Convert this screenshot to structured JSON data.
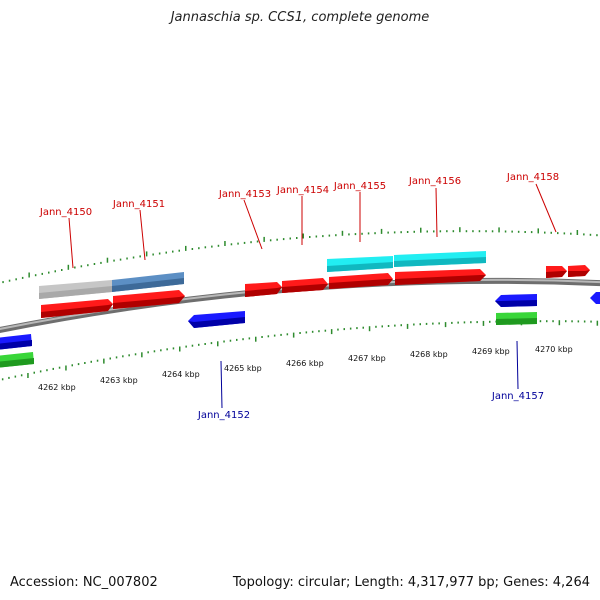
{
  "title": "Jannaschia sp. CCS1, complete genome",
  "footer": {
    "accession": "Accession: NC_007802",
    "summary": "Topology: circular; Length: 4,317,977 bp; Genes: 4,264"
  },
  "colors": {
    "backbone": "#8a8a8a",
    "tick": "#2e8b2e",
    "forward_gene": "#ee1111",
    "reverse_gene": "#1111ee",
    "rna_gene": "#33cc33",
    "cyan_feature": "#11e0e8",
    "steel_feature": "#4a7fb5",
    "grey_feature": "#c8c8c8",
    "label_forward": "#cc0000",
    "label_reverse": "#000099",
    "scale_label": "#111111"
  },
  "scale_labels": [
    "4262 kbp",
    "4263 kbp",
    "4264 kbp",
    "4265 kbp",
    "4266 kbp",
    "4267 kbp",
    "4268 kbp",
    "4269 kbp",
    "4270 kbp"
  ],
  "gene_labels_top": [
    "Jann_4150",
    "Jann_4151",
    "Jann_4153",
    "Jann_4154",
    "Jann_4155",
    "Jann_4156",
    "Jann_4158"
  ],
  "gene_labels_bottom": [
    "Jann_4152",
    "Jann_4157"
  ]
}
